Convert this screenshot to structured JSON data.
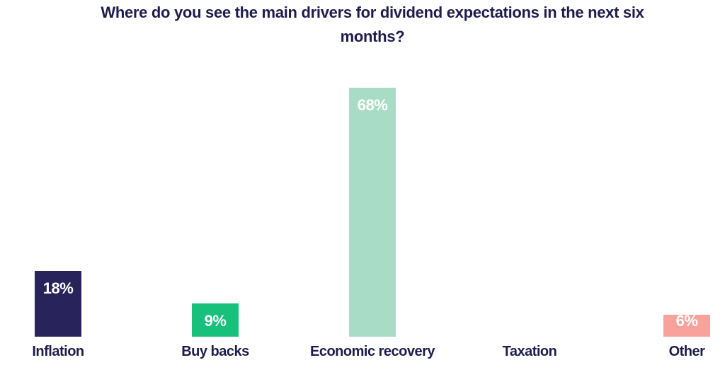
{
  "chart_data": {
    "type": "bar",
    "title": "Where do you see the main drivers for dividend expectations in the next six months?",
    "categories": [
      "Inflation",
      "Buy backs",
      "Economic recovery",
      "Taxation",
      "Other"
    ],
    "values": [
      18,
      9,
      68,
      0,
      6
    ],
    "value_labels": [
      "18%",
      "9%",
      "68%",
      "",
      "6%"
    ],
    "unit": "%",
    "bar_colors": [
      "#29235c",
      "#17c17b",
      "#a9dcc6",
      null,
      "#f9a29c"
    ],
    "value_label_color": "#ffffff",
    "category_label_color": "#1e1b4e",
    "title_color": "#1e1b4e",
    "background": "#ffffff",
    "ylim": [
      0,
      75
    ],
    "grid": false,
    "axis_visible": false,
    "legend": false,
    "value_label_position": "inside-top"
  }
}
